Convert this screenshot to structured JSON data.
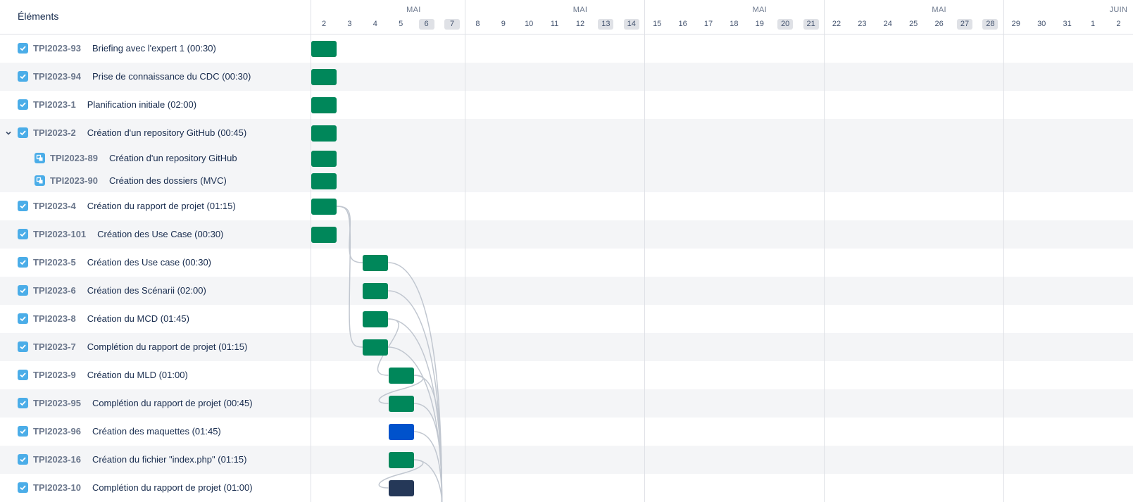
{
  "list_header": {
    "title": "Éléments"
  },
  "timeline_header": {
    "months": [
      {
        "label": "MAI",
        "center_day": 3.5
      },
      {
        "label": "MAI",
        "center_day": 10
      },
      {
        "label": "MAI",
        "center_day": 17
      },
      {
        "label": "MAI",
        "center_day": 24
      },
      {
        "label": "JUIN",
        "center_day": 31
      }
    ],
    "days": [
      {
        "label": "2",
        "weekend": false
      },
      {
        "label": "3",
        "weekend": false
      },
      {
        "label": "4",
        "weekend": false
      },
      {
        "label": "5",
        "weekend": false
      },
      {
        "label": "6",
        "weekend": true
      },
      {
        "label": "7",
        "weekend": true
      },
      {
        "label": "8",
        "weekend": false
      },
      {
        "label": "9",
        "weekend": false
      },
      {
        "label": "10",
        "weekend": false
      },
      {
        "label": "11",
        "weekend": false
      },
      {
        "label": "12",
        "weekend": false
      },
      {
        "label": "13",
        "weekend": true
      },
      {
        "label": "14",
        "weekend": true
      },
      {
        "label": "15",
        "weekend": false
      },
      {
        "label": "16",
        "weekend": false
      },
      {
        "label": "17",
        "weekend": false
      },
      {
        "label": "18",
        "weekend": false
      },
      {
        "label": "19",
        "weekend": false
      },
      {
        "label": "20",
        "weekend": true
      },
      {
        "label": "21",
        "weekend": true
      },
      {
        "label": "22",
        "weekend": false
      },
      {
        "label": "23",
        "weekend": false
      },
      {
        "label": "24",
        "weekend": false
      },
      {
        "label": "25",
        "weekend": false
      },
      {
        "label": "26",
        "weekend": false
      },
      {
        "label": "27",
        "weekend": true
      },
      {
        "label": "28",
        "weekend": true
      },
      {
        "label": "29",
        "weekend": false
      },
      {
        "label": "30",
        "weekend": false
      },
      {
        "label": "31",
        "weekend": false
      },
      {
        "label": "1",
        "weekend": false
      },
      {
        "label": "2",
        "weekend": false
      }
    ]
  },
  "colors": {
    "done": "#00875a",
    "in_progress": "#0052cc",
    "todo": "#253858",
    "dependency": "#c1c7d0"
  },
  "items": [
    {
      "key": "TPI2023-93",
      "title": "Briefing avec l'expert 1 (00:30)",
      "type": "task",
      "status": "done",
      "start_day": 0,
      "span_days": 1,
      "deps": []
    },
    {
      "key": "TPI2023-94",
      "title": "Prise de connaissance du CDC (00:30)",
      "type": "task",
      "status": "done",
      "start_day": 0,
      "span_days": 1,
      "deps": []
    },
    {
      "key": "TPI2023-1",
      "title": "Planification initiale (02:00)",
      "type": "task",
      "status": "done",
      "start_day": 0,
      "span_days": 1,
      "deps": []
    },
    {
      "key": "TPI2023-2",
      "title": "Création d'un repository GitHub (00:45)",
      "type": "task",
      "status": "done",
      "start_day": 0,
      "span_days": 1,
      "expanded": true,
      "deps": []
    },
    {
      "key": "TPI2023-89",
      "title": "Création d'un repository GitHub",
      "type": "subtask",
      "status": "done",
      "start_day": 0,
      "span_days": 1,
      "deps": []
    },
    {
      "key": "TPI2023-90",
      "title": "Création des dossiers (MVC)",
      "type": "subtask",
      "status": "done",
      "start_day": 0,
      "span_days": 1,
      "deps": []
    },
    {
      "key": "TPI2023-4",
      "title": "Création du rapport de projet (01:15)",
      "type": "task",
      "status": "done",
      "start_day": 0,
      "span_days": 1,
      "deps": []
    },
    {
      "key": "TPI2023-101",
      "title": "Création des Use Case (00:30)",
      "type": "task",
      "status": "done",
      "start_day": 0,
      "span_days": 1,
      "deps": []
    },
    {
      "key": "TPI2023-5",
      "title": "Création des Use case (00:30)",
      "type": "task",
      "status": "done",
      "start_day": 2,
      "span_days": 1,
      "deps": [
        6
      ]
    },
    {
      "key": "TPI2023-6",
      "title": "Création des Scénarii (02:00)",
      "type": "task",
      "status": "done",
      "start_day": 2,
      "span_days": 1,
      "deps": []
    },
    {
      "key": "TPI2023-8",
      "title": "Création du MCD (01:45)",
      "type": "task",
      "status": "done",
      "start_day": 2,
      "span_days": 1,
      "deps": []
    },
    {
      "key": "TPI2023-7",
      "title": "Complétion du rapport de projet (01:15)",
      "type": "task",
      "status": "done",
      "start_day": 2,
      "span_days": 1,
      "deps": [
        6
      ]
    },
    {
      "key": "TPI2023-9",
      "title": "Création du MLD (01:00)",
      "type": "task",
      "status": "done",
      "start_day": 3,
      "span_days": 1,
      "deps": [
        10
      ]
    },
    {
      "key": "TPI2023-95",
      "title": "Complétion du rapport de projet (00:45)",
      "type": "task",
      "status": "done",
      "start_day": 3,
      "span_days": 1,
      "deps": [
        12
      ]
    },
    {
      "key": "TPI2023-96",
      "title": "Création des maquettes (01:45)",
      "type": "task",
      "status": "in_progress",
      "start_day": 3,
      "span_days": 1,
      "deps": []
    },
    {
      "key": "TPI2023-16",
      "title": "Création du fichier \"index.php\" (01:15)",
      "type": "task",
      "status": "done",
      "start_day": 3,
      "span_days": 1,
      "deps": []
    },
    {
      "key": "TPI2023-10",
      "title": "Complétion du rapport de projet (01:00)",
      "type": "task",
      "status": "todo",
      "start_day": 3,
      "span_days": 1,
      "deps": [
        15
      ]
    }
  ],
  "extra_dependency_curves": [
    {
      "from_row": 8,
      "to_day": 4.6
    },
    {
      "from_row": 9,
      "to_day": 4.6
    },
    {
      "from_row": 10,
      "to_day": 4.6
    },
    {
      "from_row": 11,
      "to_day": 4.6
    },
    {
      "from_row": 12,
      "to_day": 4.6
    },
    {
      "from_row": 13,
      "to_day": 4.6
    },
    {
      "from_row": 14,
      "to_day": 4.6
    },
    {
      "from_row": 15,
      "to_day": 4.6
    }
  ]
}
